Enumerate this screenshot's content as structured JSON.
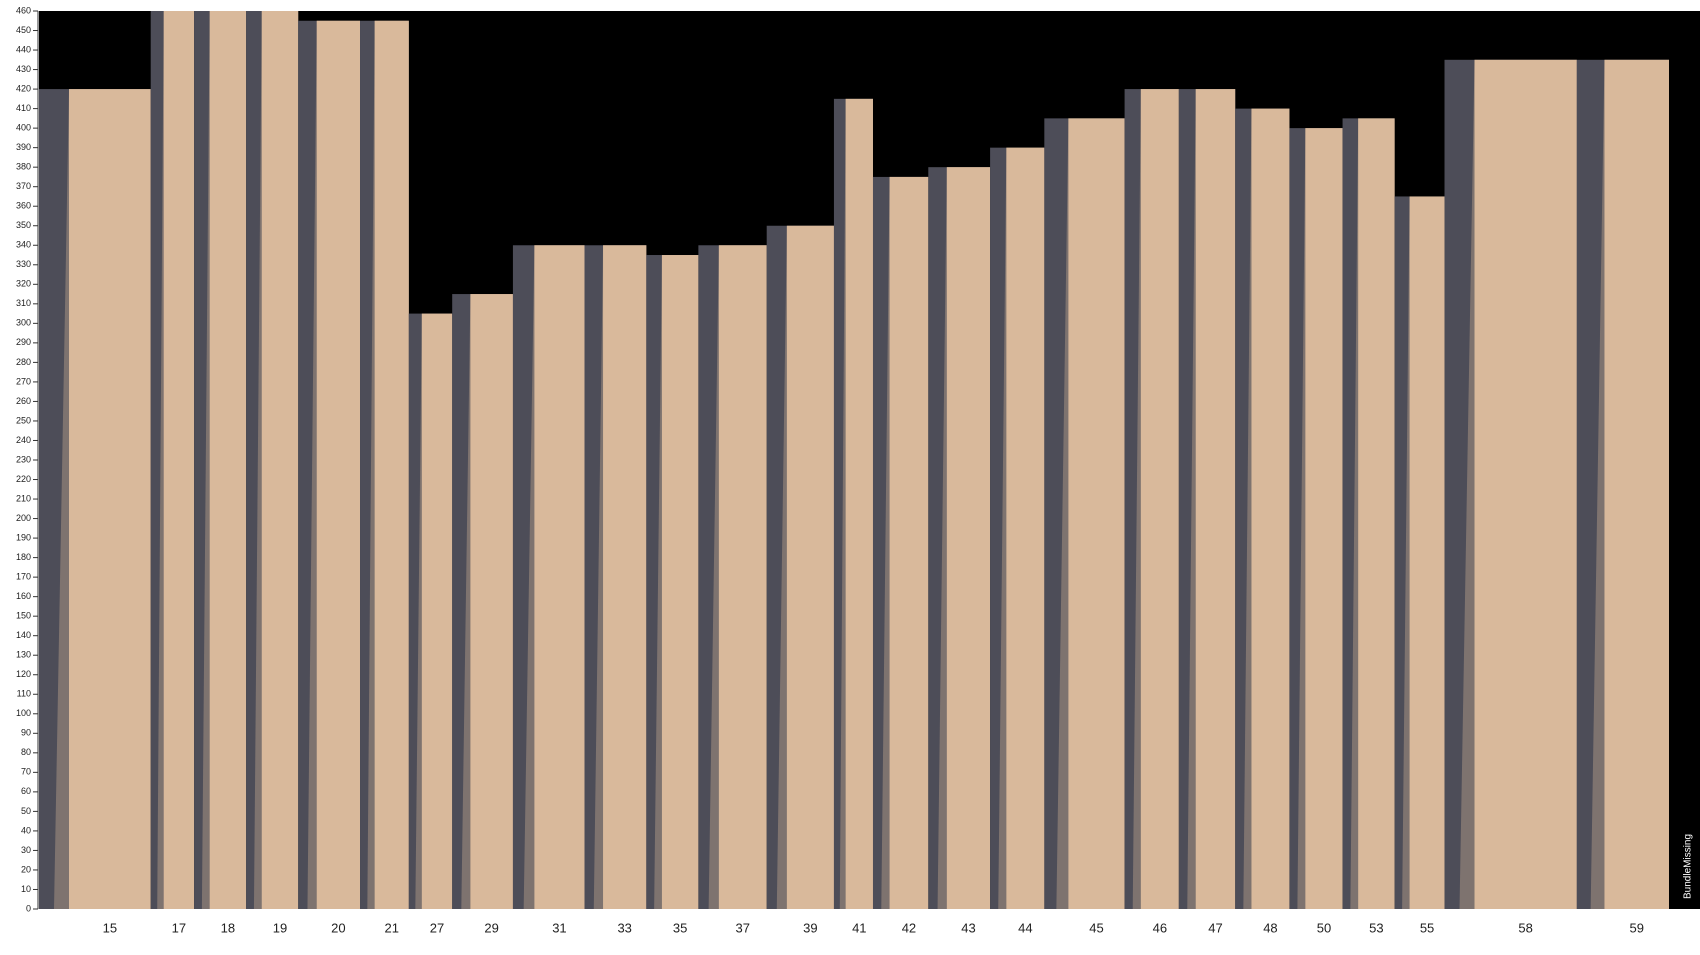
{
  "chart_data": {
    "type": "bar",
    "categories": [
      "15",
      "17",
      "18",
      "19",
      "20",
      "21",
      "27",
      "29",
      "31",
      "33",
      "35",
      "37",
      "39",
      "41",
      "42",
      "43",
      "44",
      "45",
      "46",
      "47",
      "48",
      "50",
      "53",
      "55",
      "58",
      "59"
    ],
    "values": [
      420,
      460,
      460,
      460,
      455,
      455,
      305,
      315,
      340,
      340,
      335,
      340,
      350,
      415,
      375,
      380,
      390,
      405,
      420,
      420,
      410,
      400,
      405,
      365,
      435,
      435
    ],
    "color": "#d9b99b",
    "shadow_color": "#4d4d58",
    "background": "#000000",
    "ylim": [
      0,
      460
    ],
    "yticks": [
      0,
      10,
      20,
      30,
      40,
      50,
      60,
      70,
      80,
      90,
      100,
      110,
      120,
      130,
      140,
      150,
      160,
      170,
      180,
      190,
      200,
      210,
      220,
      230,
      240,
      250,
      260,
      270,
      280,
      290,
      300,
      310,
      320,
      330,
      340,
      350,
      360,
      370,
      380,
      390,
      400,
      410,
      420,
      430,
      440,
      450,
      460
    ],
    "annotation": "BundleMissing"
  }
}
